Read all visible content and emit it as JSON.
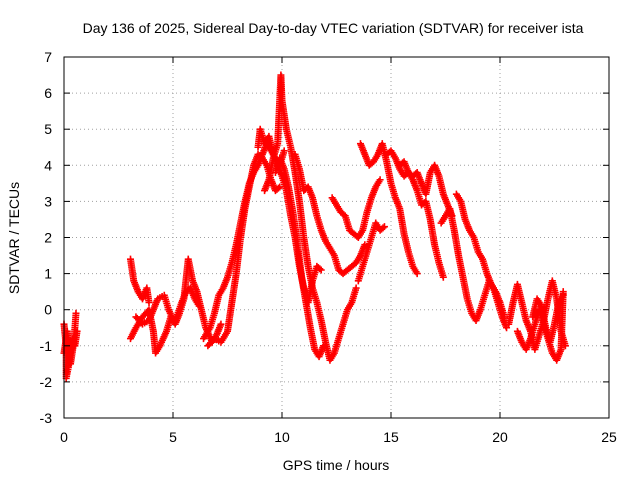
{
  "chart_data": {
    "type": "scatter",
    "title": "Day 136 of 2025, Sidereal Day-to-day VTEC variation (SDTVAR) for receiver ista",
    "xlabel": "GPS time / hours",
    "ylabel": "SDTVAR / TECUs",
    "xlim": [
      0,
      25
    ],
    "ylim": [
      -3,
      7
    ],
    "xticks": [
      "0",
      "5",
      "10",
      "15",
      "20",
      "25"
    ],
    "yticks": [
      "-3",
      "-2",
      "-1",
      "0",
      "1",
      "2",
      "3",
      "4",
      "5",
      "6",
      "7"
    ],
    "grid": true,
    "marker": "+",
    "color": "#ff0000",
    "series": [
      {
        "name": "SDTVAR",
        "traces": [
          [
            [
              0.0,
              -0.4
            ],
            [
              0.1,
              -1.0
            ],
            [
              0.1,
              -1.9
            ],
            [
              0.2,
              -1.6
            ],
            [
              0.3,
              -1.2
            ],
            [
              0.4,
              -0.8
            ],
            [
              0.5,
              -1.0
            ],
            [
              0.6,
              -0.6
            ]
          ],
          [
            [
              0.0,
              -1.2
            ],
            [
              0.15,
              -0.6
            ],
            [
              0.3,
              -1.5
            ],
            [
              0.45,
              -0.9
            ],
            [
              0.55,
              -0.1
            ]
          ],
          [
            [
              3.05,
              1.4
            ],
            [
              3.2,
              0.8
            ],
            [
              3.4,
              0.5
            ],
            [
              3.6,
              0.3
            ],
            [
              3.8,
              0.6
            ],
            [
              3.9,
              0.2
            ]
          ],
          [
            [
              3.05,
              -0.8
            ],
            [
              3.3,
              -0.5
            ],
            [
              3.6,
              -0.2
            ],
            [
              3.9,
              0.0
            ],
            [
              4.1,
              -0.6
            ],
            [
              4.2,
              -1.2
            ],
            [
              4.4,
              -1.0
            ],
            [
              4.7,
              -0.6
            ],
            [
              4.9,
              -0.2
            ],
            [
              5.1,
              -0.3
            ],
            [
              5.4,
              0.2
            ],
            [
              5.6,
              0.5
            ],
            [
              5.8,
              0.6
            ],
            [
              6.0,
              0.3
            ],
            [
              6.2,
              0.1
            ]
          ],
          [
            [
              3.3,
              -0.2
            ],
            [
              3.6,
              -0.4
            ],
            [
              3.9,
              -0.3
            ],
            [
              4.1,
              0.0
            ],
            [
              4.3,
              0.3
            ],
            [
              4.6,
              0.4
            ],
            [
              4.8,
              0.0
            ],
            [
              5.1,
              -0.4
            ],
            [
              5.3,
              -0.1
            ],
            [
              5.5,
              0.3
            ],
            [
              5.7,
              1.4
            ],
            [
              5.9,
              0.8
            ],
            [
              6.1,
              0.5
            ],
            [
              6.3,
              0.0
            ],
            [
              6.5,
              -0.5
            ],
            [
              6.8,
              -0.9
            ],
            [
              7.0,
              -0.7
            ],
            [
              7.2,
              -0.4
            ]
          ],
          [
            [
              6.4,
              -0.8
            ],
            [
              6.7,
              -0.5
            ],
            [
              6.9,
              -0.1
            ],
            [
              7.1,
              0.4
            ],
            [
              7.3,
              0.6
            ],
            [
              7.5,
              0.9
            ],
            [
              7.7,
              1.3
            ],
            [
              7.9,
              1.8
            ],
            [
              8.1,
              2.4
            ],
            [
              8.3,
              3.0
            ],
            [
              8.5,
              3.5
            ],
            [
              8.7,
              3.8
            ],
            [
              8.9,
              4.0
            ],
            [
              9.1,
              4.3
            ],
            [
              9.3,
              4.6
            ],
            [
              9.5,
              4.4
            ],
            [
              9.7,
              4.2
            ],
            [
              9.9,
              4.0
            ],
            [
              10.1,
              4.4
            ]
          ],
          [
            [
              6.6,
              -1.0
            ],
            [
              6.9,
              -0.8
            ],
            [
              7.2,
              -0.9
            ],
            [
              7.5,
              -0.6
            ],
            [
              7.7,
              0.2
            ],
            [
              7.9,
              1.0
            ],
            [
              8.1,
              2.0
            ],
            [
              8.3,
              2.8
            ],
            [
              8.5,
              3.4
            ],
            [
              8.7,
              4.0
            ],
            [
              8.9,
              4.3
            ],
            [
              9.1,
              4.2
            ],
            [
              9.3,
              4.0
            ],
            [
              9.5,
              3.6
            ],
            [
              9.7,
              3.3
            ],
            [
              9.9,
              3.4
            ]
          ],
          [
            [
              8.9,
              4.5
            ],
            [
              9.0,
              5.0
            ],
            [
              9.2,
              4.6
            ],
            [
              9.4,
              4.8
            ],
            [
              9.6,
              4.3
            ],
            [
              9.8,
              4.0
            ],
            [
              10.0,
              3.7
            ],
            [
              10.2,
              3.3
            ],
            [
              10.4,
              2.6
            ],
            [
              10.6,
              2.0
            ],
            [
              10.8,
              1.2
            ],
            [
              11.0,
              0.6
            ],
            [
              11.2,
              0.2
            ],
            [
              11.4,
              0.8
            ],
            [
              11.6,
              1.2
            ],
            [
              11.8,
              1.1
            ]
          ],
          [
            [
              9.2,
              3.3
            ],
            [
              9.4,
              3.6
            ],
            [
              9.6,
              4.2
            ],
            [
              9.8,
              4.6
            ],
            [
              9.95,
              6.5
            ],
            [
              10.0,
              5.8
            ],
            [
              10.2,
              5.0
            ],
            [
              10.4,
              4.5
            ],
            [
              10.6,
              3.8
            ],
            [
              10.8,
              3.0
            ],
            [
              11.0,
              2.0
            ],
            [
              11.2,
              1.2
            ],
            [
              11.4,
              0.6
            ],
            [
              11.6,
              0.2
            ],
            [
              11.8,
              -0.3
            ],
            [
              12.0,
              -0.9
            ],
            [
              12.2,
              -1.4
            ],
            [
              12.4,
              -1.2
            ],
            [
              12.6,
              -0.8
            ],
            [
              12.8,
              -0.4
            ],
            [
              13.0,
              0.0
            ],
            [
              13.2,
              0.2
            ],
            [
              13.4,
              0.6
            ]
          ],
          [
            [
              9.7,
              3.8
            ],
            [
              9.9,
              4.2
            ],
            [
              10.1,
              3.9
            ],
            [
              10.3,
              3.4
            ],
            [
              10.5,
              2.7
            ],
            [
              10.7,
              1.9
            ],
            [
              10.9,
              0.9
            ],
            [
              11.1,
              0.2
            ],
            [
              11.3,
              -0.5
            ],
            [
              11.5,
              -1.1
            ],
            [
              11.7,
              -1.3
            ],
            [
              11.9,
              -1.0
            ]
          ],
          [
            [
              10.6,
              4.3
            ],
            [
              10.8,
              3.9
            ],
            [
              11.0,
              3.3
            ],
            [
              11.2,
              3.4
            ],
            [
              11.4,
              3.1
            ],
            [
              11.6,
              2.6
            ],
            [
              11.8,
              2.2
            ],
            [
              12.0,
              1.9
            ],
            [
              12.2,
              1.7
            ],
            [
              12.4,
              1.5
            ],
            [
              12.6,
              1.1
            ],
            [
              12.8,
              1.0
            ],
            [
              13.0,
              1.1
            ],
            [
              13.2,
              1.2
            ],
            [
              13.4,
              1.3
            ],
            [
              13.6,
              1.5
            ],
            [
              13.8,
              1.8
            ]
          ],
          [
            [
              12.3,
              3.1
            ],
            [
              12.5,
              2.9
            ],
            [
              12.7,
              2.7
            ],
            [
              12.9,
              2.6
            ],
            [
              13.1,
              2.2
            ],
            [
              13.3,
              2.1
            ],
            [
              13.5,
              2.0
            ],
            [
              13.7,
              2.2
            ],
            [
              13.9,
              2.7
            ],
            [
              14.1,
              3.1
            ],
            [
              14.3,
              3.4
            ],
            [
              14.5,
              3.6
            ]
          ],
          [
            [
              13.5,
              0.8
            ],
            [
              13.7,
              1.2
            ],
            [
              13.9,
              1.6
            ],
            [
              14.1,
              2.0
            ],
            [
              14.3,
              2.4
            ],
            [
              14.5,
              2.2
            ],
            [
              14.7,
              2.3
            ]
          ],
          [
            [
              13.6,
              4.6
            ],
            [
              13.8,
              4.3
            ],
            [
              14.0,
              4.0
            ],
            [
              14.2,
              4.1
            ],
            [
              14.4,
              4.3
            ],
            [
              14.6,
              4.6
            ],
            [
              14.8,
              4.1
            ],
            [
              15.0,
              3.5
            ],
            [
              15.2,
              3.1
            ],
            [
              15.4,
              2.8
            ],
            [
              15.6,
              2.1
            ],
            [
              15.8,
              1.6
            ],
            [
              16.0,
              1.2
            ],
            [
              16.2,
              1.0
            ]
          ],
          [
            [
              14.8,
              4.3
            ],
            [
              15.0,
              4.4
            ],
            [
              15.2,
              4.2
            ],
            [
              15.4,
              3.9
            ],
            [
              15.6,
              3.7
            ],
            [
              15.8,
              3.8
            ],
            [
              16.0,
              3.6
            ],
            [
              16.2,
              3.3
            ],
            [
              16.4,
              2.9
            ],
            [
              16.6,
              3.0
            ],
            [
              16.8,
              2.5
            ],
            [
              17.0,
              1.8
            ],
            [
              17.2,
              1.3
            ],
            [
              17.4,
              0.9
            ]
          ],
          [
            [
              15.4,
              4.0
            ],
            [
              15.6,
              4.1
            ],
            [
              15.8,
              3.8
            ],
            [
              16.0,
              3.7
            ],
            [
              16.2,
              3.8
            ],
            [
              16.4,
              3.5
            ],
            [
              16.6,
              3.2
            ],
            [
              16.8,
              3.8
            ],
            [
              17.0,
              4.0
            ],
            [
              17.2,
              3.7
            ],
            [
              17.4,
              3.2
            ],
            [
              17.6,
              2.9
            ],
            [
              17.8,
              2.6
            ]
          ],
          [
            [
              17.3,
              2.4
            ],
            [
              17.5,
              2.6
            ],
            [
              17.7,
              2.8
            ],
            [
              17.9,
              2.2
            ],
            [
              18.1,
              1.5
            ],
            [
              18.3,
              0.9
            ],
            [
              18.5,
              0.3
            ],
            [
              18.7,
              -0.1
            ],
            [
              18.9,
              -0.3
            ],
            [
              19.1,
              0.0
            ],
            [
              19.3,
              0.4
            ],
            [
              19.5,
              0.8
            ],
            [
              19.7,
              0.6
            ],
            [
              19.9,
              0.2
            ],
            [
              20.1,
              -0.2
            ],
            [
              20.3,
              -0.5
            ]
          ],
          [
            [
              18.0,
              3.2
            ],
            [
              18.2,
              3.0
            ],
            [
              18.4,
              2.5
            ],
            [
              18.6,
              2.2
            ],
            [
              18.8,
              2.0
            ],
            [
              19.0,
              1.6
            ],
            [
              19.2,
              1.4
            ],
            [
              19.4,
              1.0
            ],
            [
              19.6,
              0.7
            ],
            [
              19.8,
              0.5
            ],
            [
              20.0,
              0.2
            ],
            [
              20.2,
              -0.2
            ]
          ],
          [
            [
              20.4,
              -0.4
            ],
            [
              20.6,
              0.2
            ],
            [
              20.8,
              0.7
            ],
            [
              21.0,
              0.2
            ],
            [
              21.2,
              -0.3
            ],
            [
              21.4,
              -0.6
            ],
            [
              21.6,
              -1.1
            ],
            [
              21.8,
              -0.7
            ],
            [
              22.0,
              -0.3
            ],
            [
              22.2,
              0.3
            ],
            [
              22.4,
              0.8
            ],
            [
              22.6,
              0.3
            ],
            [
              22.8,
              -0.6
            ],
            [
              23.0,
              -1.0
            ]
          ],
          [
            [
              20.8,
              -0.6
            ],
            [
              21.0,
              -0.9
            ],
            [
              21.2,
              -1.1
            ],
            [
              21.4,
              -0.8
            ],
            [
              21.6,
              -0.4
            ],
            [
              21.8,
              0.0
            ],
            [
              22.0,
              -0.4
            ],
            [
              22.2,
              -0.8
            ],
            [
              22.4,
              -1.2
            ],
            [
              22.6,
              -1.4
            ],
            [
              22.8,
              -1.1
            ],
            [
              22.9,
              0.5
            ]
          ],
          [
            [
              21.5,
              -0.2
            ],
            [
              21.7,
              0.3
            ],
            [
              21.9,
              0.1
            ],
            [
              22.1,
              -0.5
            ],
            [
              22.3,
              -0.9
            ],
            [
              22.5,
              -0.4
            ],
            [
              22.7,
              0.2
            ],
            [
              22.9,
              0.4
            ]
          ]
        ]
      }
    ]
  }
}
